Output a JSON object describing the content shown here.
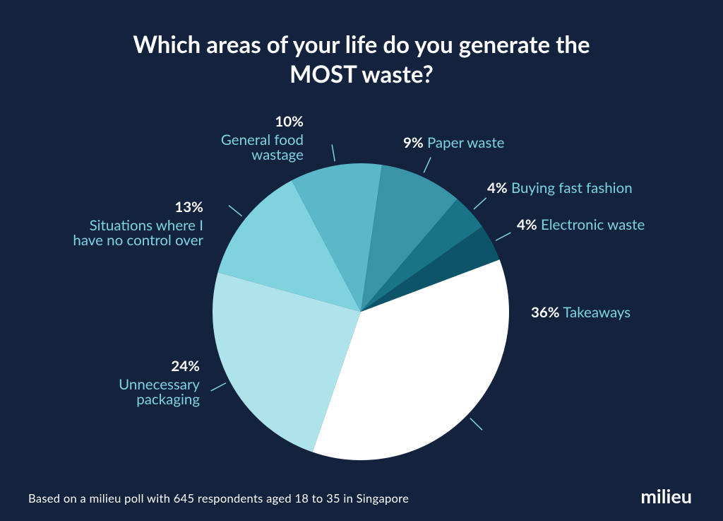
{
  "chart_data": {
    "type": "pie",
    "title": "Which areas of your life do you generate the MOST waste?",
    "categories": [
      "Takeaways",
      "Unnecessary packaging",
      "Situations where I have no control over",
      "General food wastage",
      "Paper waste",
      "Buying fast fashion",
      "Electronic waste"
    ],
    "values": [
      36,
      24,
      13,
      10,
      9,
      4,
      4
    ],
    "value_labels": [
      "36%",
      "24%",
      "13%",
      "10%",
      "9%",
      "4%",
      "4%"
    ],
    "colors": [
      "#ffffff",
      "#aee3ec",
      "#7fd3df",
      "#5bb8c8",
      "#3a93a6",
      "#1a7488",
      "#0e5468"
    ],
    "footnote": "Based on a milieu poll with 645 respondents aged 18 to 35 in Singapore",
    "brand": "milieu"
  }
}
